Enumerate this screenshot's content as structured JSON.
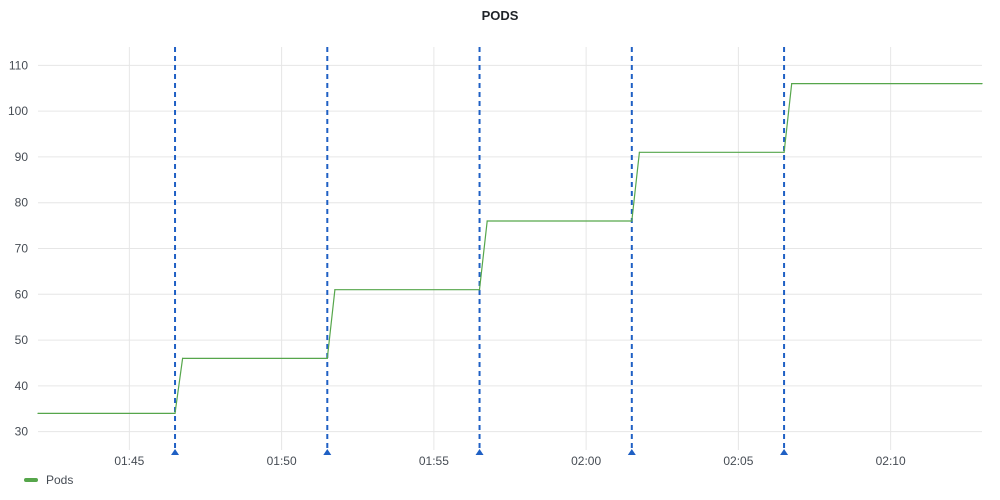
{
  "panel": {
    "title": "PODS"
  },
  "chart_data": {
    "type": "line",
    "title": "PODS",
    "xlabel": "",
    "ylabel": "",
    "xlim": [
      "01:42",
      "02:13"
    ],
    "ylim": [
      26,
      114
    ],
    "x_ticks": [
      "01:45",
      "01:50",
      "01:55",
      "02:00",
      "02:05",
      "02:10"
    ],
    "y_ticks": [
      30,
      40,
      50,
      60,
      70,
      80,
      90,
      100,
      110
    ],
    "grid": true,
    "legend_position": "bottom-left",
    "series": [
      {
        "name": "Pods",
        "color": "#56a64b",
        "points": [
          [
            "01:42",
            34
          ],
          [
            "01:46:30",
            34
          ],
          [
            "01:46:45",
            46
          ],
          [
            "01:51:30",
            46
          ],
          [
            "01:51:45",
            61
          ],
          [
            "01:56:30",
            61
          ],
          [
            "01:56:45",
            76
          ],
          [
            "02:01:30",
            76
          ],
          [
            "02:01:45",
            91
          ],
          [
            "02:06:30",
            91
          ],
          [
            "02:06:45",
            106
          ],
          [
            "02:13",
            106
          ]
        ]
      }
    ],
    "annotations": {
      "color": "#1f60c4",
      "times": [
        "01:46:30",
        "01:51:30",
        "01:56:30",
        "02:01:30",
        "02:06:30"
      ]
    }
  }
}
